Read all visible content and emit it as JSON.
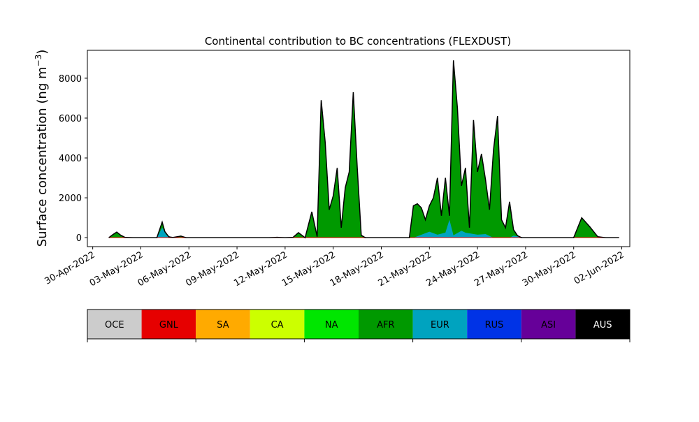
{
  "chart_data": {
    "type": "area",
    "stacked": true,
    "title": "Continental contribution to BC concentrations (FLEXDUST)",
    "ylabel_text": "Surface concentration (ng m",
    "ylabel_sup": "−3",
    "ylabel_close": ")",
    "xlabel": "",
    "x_start": "2022-04-29",
    "x_end": "2022-06-02",
    "ylim": [
      -450,
      9400
    ],
    "xlim": [
      "2022-04-29T16:00",
      "2022-06-02T12:00"
    ],
    "y_ticks": [
      0,
      2000,
      4000,
      6000,
      8000
    ],
    "x_ticks": [
      {
        "date": "2022-04-30",
        "label": "30-Apr-2022"
      },
      {
        "date": "2022-05-03",
        "label": "03-May-2022"
      },
      {
        "date": "2022-05-06",
        "label": "06-May-2022"
      },
      {
        "date": "2022-05-09",
        "label": "09-May-2022"
      },
      {
        "date": "2022-05-12",
        "label": "12-May-2022"
      },
      {
        "date": "2022-05-15",
        "label": "15-May-2022"
      },
      {
        "date": "2022-05-18",
        "label": "18-May-2022"
      },
      {
        "date": "2022-05-21",
        "label": "21-May-2022"
      },
      {
        "date": "2022-05-24",
        "label": "24-May-2022"
      },
      {
        "date": "2022-05-27",
        "label": "27-May-2022"
      },
      {
        "date": "2022-05-30",
        "label": "30-May-2022"
      },
      {
        "date": "2022-06-02",
        "label": "02-Jun-2022"
      }
    ],
    "grid": false,
    "legend": "bottom colorbar",
    "series_order": [
      "OCE",
      "GNL",
      "SA",
      "CA",
      "NA",
      "AFR",
      "EUR",
      "RUS",
      "ASI",
      "AUS"
    ],
    "colors": {
      "OCE": "#cccccc",
      "GNL": "#e60000",
      "SA": "#ffaa00",
      "CA": "#ccff00",
      "NA": "#00e600",
      "AFR": "#009900",
      "EUR": "#00a3bf",
      "RUS": "#0033e6",
      "ASI": "#660099",
      "AUS": "#000000"
    },
    "total": {
      "x": [
        "2022-05-01T00:00",
        "2022-05-01T06:00",
        "2022-05-01T12:00",
        "2022-05-01T18:00",
        "2022-05-02T00:00",
        "2022-05-02T12:00",
        "2022-05-03T00:00",
        "2022-05-03T12:00",
        "2022-05-04T00:00",
        "2022-05-04T08:00",
        "2022-05-04T12:00",
        "2022-05-04T18:00",
        "2022-05-05T00:00",
        "2022-05-05T12:00",
        "2022-05-05T20:00",
        "2022-05-06T06:00",
        "2022-05-07T00:00",
        "2022-05-08T00:00",
        "2022-05-09T00:00",
        "2022-05-10T00:00",
        "2022-05-11T00:00",
        "2022-05-11T12:00",
        "2022-05-12T00:00",
        "2022-05-12T12:00",
        "2022-05-12T20:00",
        "2022-05-13T06:00",
        "2022-05-13T16:00",
        "2022-05-14T00:00",
        "2022-05-14T06:00",
        "2022-05-14T12:00",
        "2022-05-14T18:00",
        "2022-05-15T00:00",
        "2022-05-15T06:00",
        "2022-05-15T12:00",
        "2022-05-15T18:00",
        "2022-05-16T00:00",
        "2022-05-16T06:00",
        "2022-05-16T12:00",
        "2022-05-16T18:00",
        "2022-05-17T00:00",
        "2022-05-17T12:00",
        "2022-05-18T00:00",
        "2022-05-18T12:00",
        "2022-05-19T00:00",
        "2022-05-19T12:00",
        "2022-05-19T18:00",
        "2022-05-20T00:00",
        "2022-05-20T06:00",
        "2022-05-20T12:00",
        "2022-05-20T18:00",
        "2022-05-21T00:00",
        "2022-05-21T06:00",
        "2022-05-21T12:00",
        "2022-05-21T18:00",
        "2022-05-22T00:00",
        "2022-05-22T06:00",
        "2022-05-22T12:00",
        "2022-05-22T18:00",
        "2022-05-23T00:00",
        "2022-05-23T06:00",
        "2022-05-23T12:00",
        "2022-05-23T18:00",
        "2022-05-24T00:00",
        "2022-05-24T06:00",
        "2022-05-24T12:00",
        "2022-05-24T18:00",
        "2022-05-25T00:00",
        "2022-05-25T06:00",
        "2022-05-25T12:00",
        "2022-05-25T18:00",
        "2022-05-26T00:00",
        "2022-05-26T06:00",
        "2022-05-26T12:00",
        "2022-05-26T18:00",
        "2022-05-27T00:00",
        "2022-05-27T12:00",
        "2022-05-28T00:00",
        "2022-05-28T12:00",
        "2022-05-29T00:00",
        "2022-05-29T12:00",
        "2022-05-30T00:00",
        "2022-05-30T12:00",
        "2022-05-31T00:00",
        "2022-05-31T12:00",
        "2022-06-01T00:00",
        "2022-06-01T12:00",
        "2022-06-01T20:00"
      ],
      "y": [
        0,
        150,
        280,
        120,
        20,
        0,
        0,
        0,
        0,
        780,
        300,
        40,
        10,
        80,
        0,
        0,
        0,
        0,
        0,
        0,
        0,
        20,
        0,
        20,
        250,
        0,
        1300,
        50,
        6900,
        4800,
        1400,
        2100,
        3500,
        500,
        2500,
        3300,
        7300,
        3500,
        120,
        0,
        0,
        0,
        0,
        0,
        0,
        0,
        1600,
        1700,
        1500,
        900,
        1600,
        2000,
        3000,
        1100,
        3000,
        1100,
        8900,
        6500,
        2600,
        3500,
        500,
        5900,
        3300,
        4200,
        2900,
        1400,
        4400,
        6100,
        900,
        500,
        1800,
        400,
        100,
        0,
        0,
        0,
        0,
        0,
        0,
        0,
        0,
        1000,
        550,
        50,
        0,
        0,
        0
      ]
    },
    "eur": {
      "x": [
        "2022-05-01T00:00",
        "2022-05-04T00:00",
        "2022-05-04T08:00",
        "2022-05-04T14:00",
        "2022-05-05T00:00",
        "2022-05-18T00:00",
        "2022-05-20T00:00",
        "2022-05-21T00:00",
        "2022-05-21T12:00",
        "2022-05-22T00:00",
        "2022-05-22T06:00",
        "2022-05-22T12:00",
        "2022-05-23T00:00",
        "2022-05-23T06:00",
        "2022-05-24T00:00",
        "2022-05-24T12:00",
        "2022-05-25T00:00",
        "2022-05-26T00:00",
        "2022-05-26T06:00",
        "2022-05-27T00:00",
        "2022-06-01T20:00"
      ],
      "y": [
        0,
        0,
        500,
        150,
        0,
        0,
        0,
        300,
        150,
        250,
        900,
        120,
        350,
        250,
        150,
        180,
        0,
        0,
        100,
        0,
        0
      ]
    }
  }
}
